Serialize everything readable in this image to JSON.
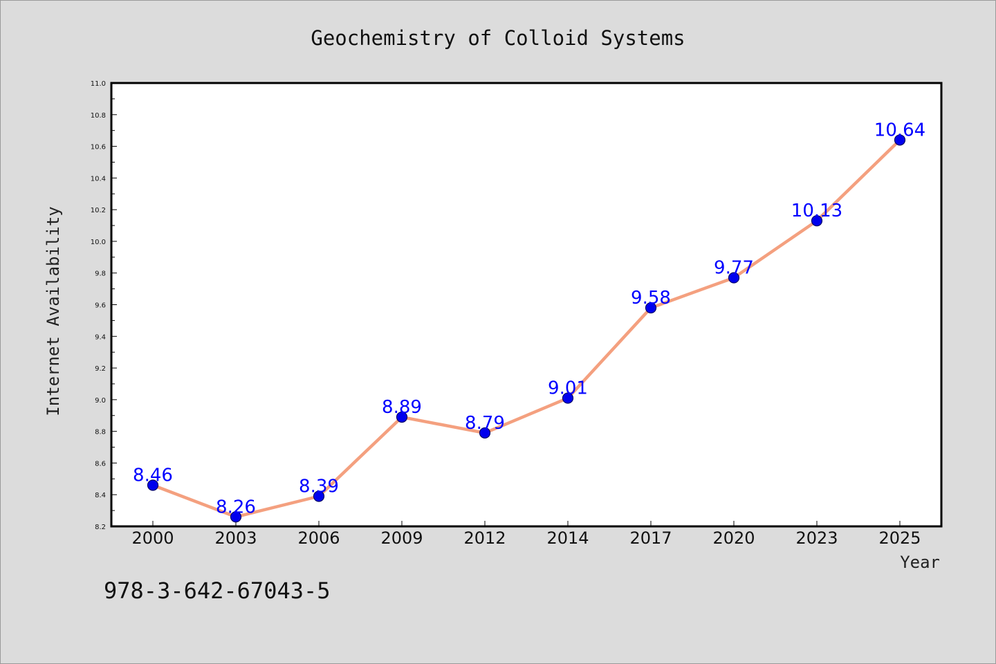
{
  "colors": {
    "background": "#dcdcdc",
    "plot_background": "#ffffff",
    "line": "#f4a07f",
    "marker_fill": "#0000ee",
    "marker_edge": "#000066",
    "data_label": "#0000ff"
  },
  "footer": {
    "isbn": "978-3-642-67043-5"
  },
  "chart_data": {
    "type": "line",
    "title": "Geochemistry of Colloid Systems",
    "xlabel": "Year",
    "ylabel": "Internet Availability",
    "categories": [
      "2000",
      "2003",
      "2006",
      "2009",
      "2012",
      "2014",
      "2017",
      "2020",
      "2023",
      "2025"
    ],
    "series": [
      {
        "values": [
          8.46,
          8.26,
          8.39,
          8.89,
          8.79,
          9.01,
          9.58,
          9.77,
          10.13,
          10.64
        ]
      }
    ],
    "data_labels": [
      "8.46",
      "8.26",
      "8.39",
      "8.89",
      "8.79",
      "9.01",
      "9.58",
      "9.77",
      "10.13",
      "10.64"
    ],
    "ylim": [
      8.2,
      11.0
    ],
    "yticks": [
      "8.2",
      "8.4",
      "8.6",
      "8.8",
      "9.0",
      "9.2",
      "9.4",
      "9.6",
      "9.8",
      "10.0",
      "10.2",
      "10.4",
      "10.6",
      "10.8",
      "11.0"
    ],
    "grid": false,
    "legend": false
  }
}
